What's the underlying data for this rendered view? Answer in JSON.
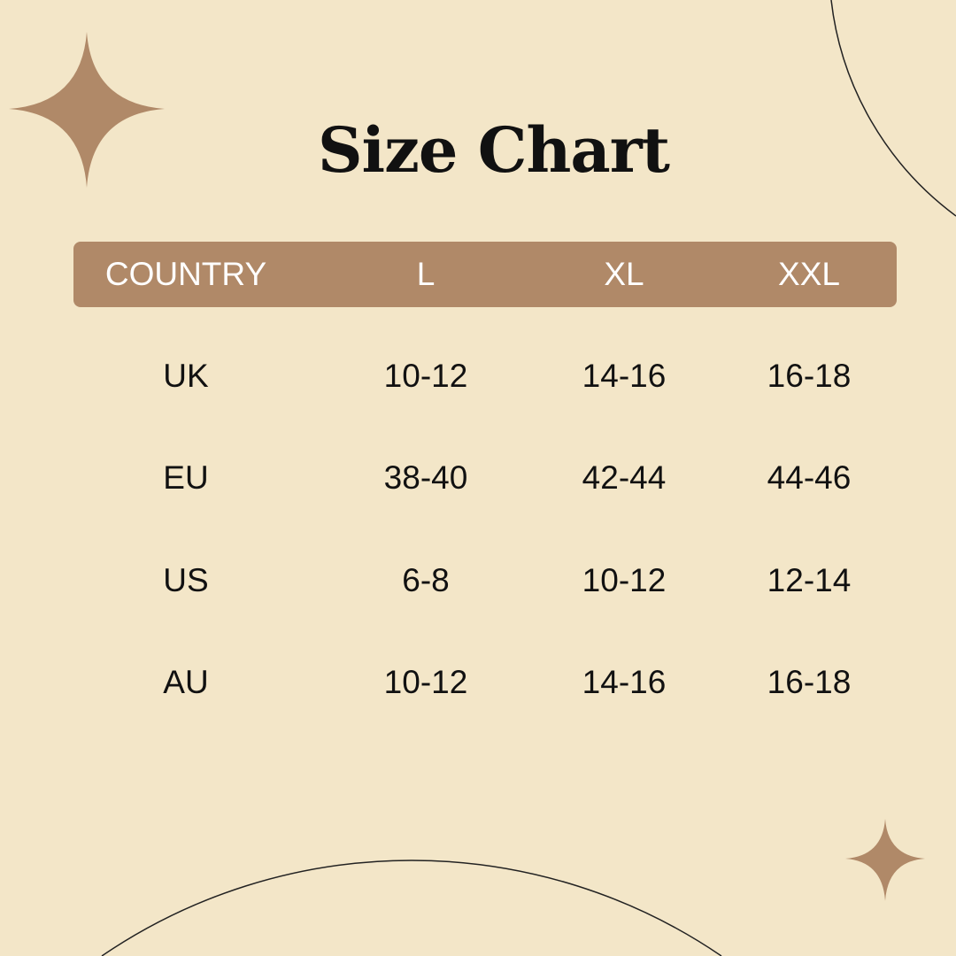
{
  "title": "Size Chart",
  "colors": {
    "background": "#f3e6c8",
    "accent": "#b08968",
    "text": "#111111"
  },
  "table": {
    "headers": [
      "COUNTRY",
      "L",
      "XL",
      "XXL"
    ],
    "rows": [
      [
        "UK",
        "10-12",
        "14-16",
        "16-18"
      ],
      [
        "EU",
        "38-40",
        "42-44",
        "44-46"
      ],
      [
        "US",
        "6-8",
        "10-12",
        "12-14"
      ],
      [
        "AU",
        "10-12",
        "14-16",
        "16-18"
      ]
    ]
  }
}
